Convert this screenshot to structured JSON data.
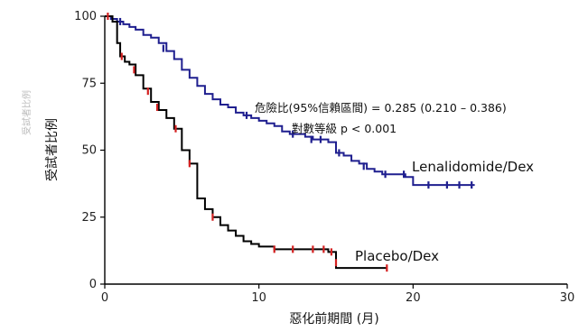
{
  "chart_data": {
    "type": "line",
    "subtype": "kaplan-meier-step",
    "xlabel": "惡化前期間 (月)",
    "ylabel": "受試者比例",
    "ylabel_ghost": "受試者比例",
    "xlim": [
      0,
      30
    ],
    "ylim": [
      0,
      100
    ],
    "xticks": [
      0,
      10,
      20,
      30
    ],
    "yticks": [
      0,
      25,
      50,
      75,
      100
    ],
    "grid": false,
    "annotations": [
      "危險比(95%信賴區間) = 0.285 (0.210 – 0.386)",
      "對數等級 p < 0.001"
    ],
    "series": [
      {
        "name": "Lenalidomide/Dex",
        "color": "#1f1f8f",
        "censor_color": "#1f1f8f",
        "x": [
          0,
          0.4,
          0.8,
          1.2,
          1.6,
          2.0,
          2.5,
          3.0,
          3.5,
          4.0,
          4.5,
          5.0,
          5.5,
          6.0,
          6.5,
          7.0,
          7.5,
          8.0,
          8.5,
          9.0,
          9.5,
          10.0,
          10.5,
          11.0,
          11.5,
          12.0,
          12.5,
          13.0,
          13.5,
          14.0,
          14.5,
          15.0,
          15.5,
          16.0,
          16.5,
          17.0,
          17.5,
          18.0,
          18.5,
          19.0,
          19.5,
          20.0,
          21.0,
          22.0,
          23.0,
          24.0
        ],
        "y": [
          100,
          99,
          98,
          97,
          96,
          95,
          93,
          92,
          90,
          87,
          84,
          80,
          77,
          74,
          71,
          69,
          67,
          66,
          64,
          63,
          62,
          61,
          60,
          59,
          57,
          56,
          56,
          55,
          54,
          54,
          53,
          49,
          48,
          46,
          45,
          43,
          42,
          41,
          41,
          41,
          40,
          37,
          37,
          37,
          37,
          37
        ],
        "censored": [
          [
            1.0,
            98
          ],
          [
            3.8,
            88
          ],
          [
            9.2,
            63
          ],
          [
            12.2,
            56
          ],
          [
            13.4,
            54
          ],
          [
            14.0,
            54
          ],
          [
            15.2,
            49
          ],
          [
            16.8,
            44
          ],
          [
            18.2,
            41
          ],
          [
            19.4,
            41
          ],
          [
            21.0,
            37
          ],
          [
            22.2,
            37
          ],
          [
            23.0,
            37
          ],
          [
            23.8,
            37
          ]
        ]
      },
      {
        "name": "Placebo/Dex",
        "color": "#000000",
        "censor_color": "#d42020",
        "x": [
          0,
          0.5,
          0.8,
          1.0,
          1.3,
          1.6,
          2.0,
          2.5,
          3.0,
          3.5,
          4.0,
          4.5,
          5.0,
          5.5,
          6.0,
          6.5,
          7.0,
          7.5,
          8.0,
          8.5,
          9.0,
          9.5,
          10.0,
          11.0,
          12.0,
          13.0,
          14.0,
          14.5,
          15.0,
          16.0,
          17.0,
          18.3
        ],
        "y": [
          100,
          98,
          90,
          85,
          83,
          82,
          78,
          73,
          68,
          65,
          62,
          58,
          50,
          45,
          32,
          28,
          25,
          22,
          20,
          18,
          16,
          15,
          14,
          13,
          13,
          13,
          13,
          12,
          6,
          6,
          6,
          6
        ],
        "censored": [
          [
            0.2,
            100
          ],
          [
            1.1,
            85
          ],
          [
            1.9,
            80
          ],
          [
            2.8,
            72
          ],
          [
            3.4,
            66
          ],
          [
            4.6,
            58
          ],
          [
            5.5,
            45
          ],
          [
            7.0,
            25
          ],
          [
            11.0,
            13
          ],
          [
            12.2,
            13
          ],
          [
            13.5,
            13
          ],
          [
            14.2,
            13
          ],
          [
            14.7,
            12
          ],
          [
            15.0,
            8
          ],
          [
            18.3,
            6
          ]
        ]
      }
    ]
  }
}
